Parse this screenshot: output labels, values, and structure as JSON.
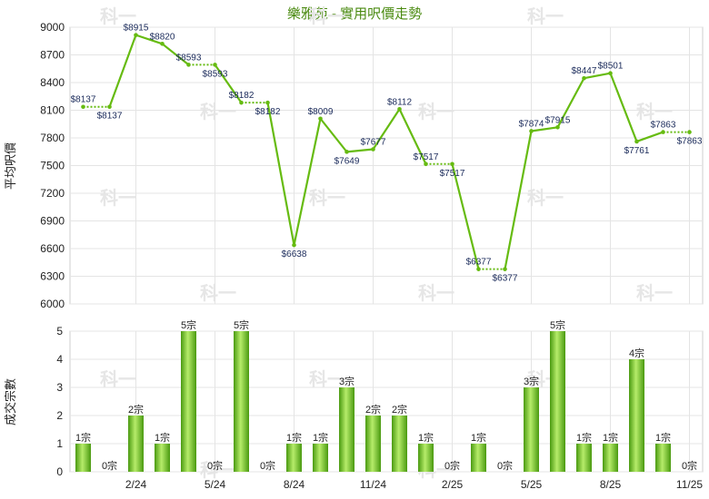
{
  "chart_data": [
    {
      "type": "line",
      "title": "樂雅苑 - 實用呎價走勢",
      "ylabel": "平均呎價",
      "ylim": [
        6000,
        9000
      ],
      "yticks": [
        6000,
        6300,
        6600,
        6900,
        7200,
        7500,
        7800,
        8100,
        8400,
        8700,
        9000
      ],
      "grid": true,
      "series": [
        {
          "values": [
            8137,
            8137,
            8915,
            8820,
            8593,
            8593,
            8182,
            8182,
            6638,
            8009,
            7649,
            7677,
            8112,
            7517,
            7517,
            6377,
            6377,
            7874,
            7915,
            8447,
            8501,
            7761,
            7863,
            7863
          ],
          "labels": [
            "$8137",
            "$8137",
            "$8915",
            "$8820",
            "$8593",
            "$8593",
            "$8182",
            "$8182",
            "$6638",
            "$8009",
            "$7649",
            "$7677",
            "$8112",
            "$7517",
            "$7517",
            "$6377",
            "$6377",
            "$7874",
            "$7915",
            "$8447",
            "$8501",
            "$7761",
            "$7863",
            "$7863"
          ],
          "carried_forward": [
            false,
            true,
            false,
            false,
            false,
            true,
            false,
            true,
            false,
            false,
            false,
            false,
            false,
            false,
            true,
            false,
            true,
            false,
            false,
            false,
            false,
            false,
            false,
            true
          ]
        }
      ],
      "color": "#66bb11"
    },
    {
      "type": "bar",
      "ylabel": "成交宗數",
      "ylim": [
        0,
        5
      ],
      "yticks": [
        0,
        1,
        2,
        3,
        4,
        5
      ],
      "grid": true,
      "values": [
        1,
        0,
        2,
        1,
        5,
        0,
        5,
        0,
        1,
        1,
        3,
        2,
        2,
        1,
        0,
        1,
        0,
        3,
        5,
        1,
        1,
        4,
        1,
        0
      ],
      "labels": [
        "1宗",
        "0宗",
        "2宗",
        "1宗",
        "5宗",
        "0宗",
        "5宗",
        "0宗",
        "1宗",
        "1宗",
        "3宗",
        "2宗",
        "2宗",
        "1宗",
        "0宗",
        "1宗",
        "0宗",
        "3宗",
        "5宗",
        "1宗",
        "1宗",
        "4宗",
        "1宗",
        "0宗"
      ],
      "x_tick_labels": [
        {
          "index": 2,
          "label": "2/24"
        },
        {
          "index": 5,
          "label": "5/24"
        },
        {
          "index": 8,
          "label": "8/24"
        },
        {
          "index": 11,
          "label": "11/24"
        },
        {
          "index": 14,
          "label": "2/25"
        },
        {
          "index": 17,
          "label": "5/25"
        },
        {
          "index": 20,
          "label": "8/25"
        },
        {
          "index": 23,
          "label": "11/25"
        }
      ],
      "color": "#66bb11"
    }
  ],
  "watermark": "科一"
}
